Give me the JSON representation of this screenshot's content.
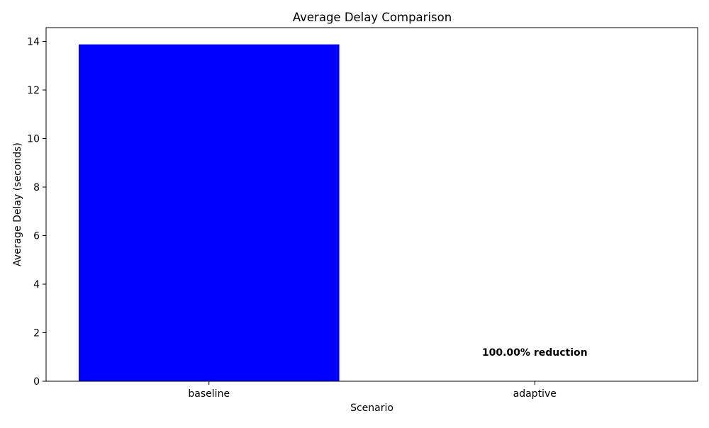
{
  "chart_data": {
    "type": "bar",
    "title": "Average Delay Comparison",
    "xlabel": "Scenario",
    "ylabel": "Average Delay (seconds)",
    "categories": [
      "baseline",
      "adaptive"
    ],
    "values": [
      13.88,
      0.0
    ],
    "ylim": [
      0,
      14.57
    ],
    "yticks": [
      0,
      2,
      4,
      6,
      8,
      10,
      12,
      14
    ],
    "bar_color": "#0000ff",
    "grid": false,
    "legend": "none",
    "annotation": {
      "text": "100.00% reduction",
      "category": "adaptive",
      "y": 1.2
    }
  }
}
